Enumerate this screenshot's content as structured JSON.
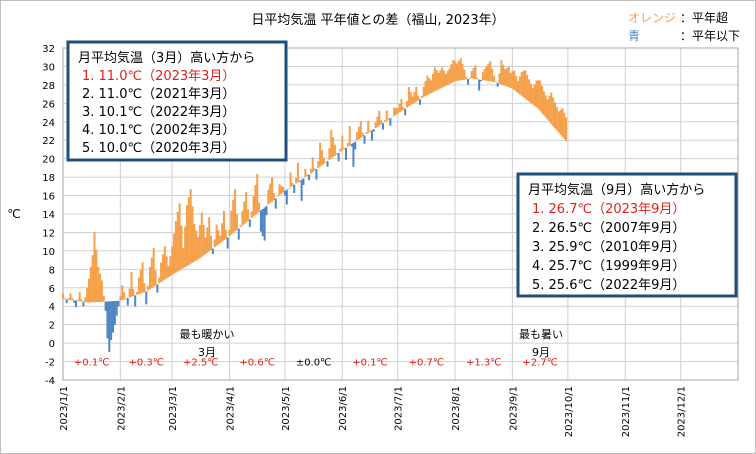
{
  "chart_data": {
    "type": "bar",
    "title": "日平均気温 平年値との差（福山, 2023年）",
    "ylabel": "℃",
    "ylim": [
      -4,
      32
    ],
    "y_ticks": [
      "-4",
      "-2",
      "0",
      "2",
      "4",
      "6",
      "8",
      "10",
      "12",
      "14",
      "16",
      "18",
      "20",
      "22",
      "24",
      "26",
      "28",
      "30",
      "32"
    ],
    "x_ticks": [
      "2023/1/1",
      "2023/2/1",
      "2023/3/1",
      "2023/4/1",
      "2023/5/1",
      "2023/6/1",
      "2023/7/1",
      "2023/8/1",
      "2023/9/1",
      "2023/10/1",
      "2023/11/1",
      "2023/12/1"
    ],
    "grid": true,
    "colors": {
      "above": "#f5a04a",
      "below": "#4f86c6",
      "warn": "#e0211b",
      "frame": "#1f4e79"
    },
    "legend": [
      {
        "label": "オレンジ",
        "text": "：平年超",
        "color": "#f5a04a"
      },
      {
        "label": "青",
        "text": "：平年以下",
        "color": "#4f86c6"
      }
    ],
    "normal_anchors": [
      [
        1,
        4.8
      ],
      [
        15,
        4.4
      ],
      [
        32,
        4.6
      ],
      [
        46,
        5.6
      ],
      [
        60,
        7.4
      ],
      [
        75,
        9.2
      ],
      [
        91,
        11.6
      ],
      [
        105,
        13.9
      ],
      [
        121,
        16.5
      ],
      [
        135,
        18.4
      ],
      [
        152,
        20.9
      ],
      [
        166,
        22.8
      ],
      [
        182,
        24.9
      ],
      [
        196,
        26.7
      ],
      [
        213,
        28.4
      ],
      [
        222,
        28.7
      ],
      [
        235,
        28.3
      ],
      [
        244,
        27.6
      ],
      [
        258,
        25.4
      ],
      [
        273,
        21.9
      ]
    ],
    "daily_anomaly": [
      [
        1,
        0.6
      ],
      [
        3,
        -0.4
      ],
      [
        5,
        0.7
      ],
      [
        8,
        -0.7
      ],
      [
        10,
        1.0
      ],
      [
        12,
        -0.5
      ],
      [
        15,
        2.6
      ],
      [
        17,
        5.1
      ],
      [
        18,
        7.6
      ],
      [
        20,
        3.8
      ],
      [
        22,
        2.3
      ],
      [
        24,
        -1.0
      ],
      [
        25,
        -4.0
      ],
      [
        26,
        -5.5
      ],
      [
        27,
        -4.2
      ],
      [
        29,
        -2.6
      ],
      [
        31,
        -0.6
      ],
      [
        33,
        1.6
      ],
      [
        36,
        -0.8
      ],
      [
        38,
        2.7
      ],
      [
        40,
        -1.2
      ],
      [
        42,
        1.8
      ],
      [
        44,
        3.3
      ],
      [
        46,
        -1.4
      ],
      [
        48,
        2.4
      ],
      [
        50,
        4.2
      ],
      [
        52,
        -0.9
      ],
      [
        54,
        2.1
      ],
      [
        56,
        3.6
      ],
      [
        58,
        1.2
      ],
      [
        60,
        3.1
      ],
      [
        62,
        5.6
      ],
      [
        64,
        7.3
      ],
      [
        66,
        2.2
      ],
      [
        68,
        6.6
      ],
      [
        70,
        8.1
      ],
      [
        72,
        4.1
      ],
      [
        74,
        2.4
      ],
      [
        76,
        4.8
      ],
      [
        78,
        1.8
      ],
      [
        80,
        3.7
      ],
      [
        82,
        -0.6
      ],
      [
        84,
        2.3
      ],
      [
        86,
        0.8
      ],
      [
        88,
        3.2
      ],
      [
        90,
        -1.2
      ],
      [
        92,
        2.6
      ],
      [
        94,
        4.6
      ],
      [
        96,
        -1.2
      ],
      [
        98,
        1.6
      ],
      [
        100,
        3.3
      ],
      [
        102,
        -0.8
      ],
      [
        104,
        2.2
      ],
      [
        106,
        4.3
      ],
      [
        108,
        -2.3
      ],
      [
        110,
        -3.6
      ],
      [
        112,
        1.6
      ],
      [
        114,
        2.6
      ],
      [
        116,
        -1.1
      ],
      [
        118,
        1.2
      ],
      [
        120,
        0.6
      ],
      [
        122,
        -1.6
      ],
      [
        124,
        1.6
      ],
      [
        126,
        -0.9
      ],
      [
        128,
        2.1
      ],
      [
        130,
        -2.3
      ],
      [
        132,
        0.9
      ],
      [
        134,
        -0.6
      ],
      [
        136,
        1.6
      ],
      [
        138,
        -1.1
      ],
      [
        140,
        2.6
      ],
      [
        142,
        0.7
      ],
      [
        144,
        -0.6
      ],
      [
        146,
        3.1
      ],
      [
        148,
        1.2
      ],
      [
        150,
        -0.9
      ],
      [
        152,
        1.6
      ],
      [
        154,
        -1.3
      ],
      [
        156,
        2.1
      ],
      [
        158,
        -2.6
      ],
      [
        160,
        0.9
      ],
      [
        162,
        1.8
      ],
      [
        164,
        -0.9
      ],
      [
        166,
        1.3
      ],
      [
        168,
        -1.1
      ],
      [
        170,
        0.6
      ],
      [
        172,
        1.6
      ],
      [
        174,
        -0.7
      ],
      [
        176,
        1.1
      ],
      [
        178,
        -0.8
      ],
      [
        180,
        0.9
      ],
      [
        182,
        0.6
      ],
      [
        184,
        1.3
      ],
      [
        186,
        -0.7
      ],
      [
        188,
        2.1
      ],
      [
        190,
        0.8
      ],
      [
        192,
        1.6
      ],
      [
        194,
        -0.6
      ],
      [
        196,
        1.1
      ],
      [
        198,
        2.1
      ],
      [
        200,
        1.4
      ],
      [
        202,
        2.6
      ],
      [
        204,
        1.8
      ],
      [
        206,
        2.2
      ],
      [
        208,
        1.3
      ],
      [
        210,
        1.7
      ],
      [
        212,
        2.4
      ],
      [
        214,
        1.9
      ],
      [
        216,
        2.4
      ],
      [
        218,
        1.1
      ],
      [
        220,
        -0.6
      ],
      [
        222,
        0.8
      ],
      [
        224,
        1.5
      ],
      [
        226,
        -1.2
      ],
      [
        228,
        0.9
      ],
      [
        230,
        1.6
      ],
      [
        232,
        2.2
      ],
      [
        234,
        0.6
      ],
      [
        236,
        -0.4
      ],
      [
        238,
        2.6
      ],
      [
        240,
        1.8
      ],
      [
        242,
        2.2
      ],
      [
        243,
        1.6
      ],
      [
        245,
        2.1
      ],
      [
        247,
        1.3
      ],
      [
        249,
        2.6
      ],
      [
        251,
        3.1
      ],
      [
        253,
        2.4
      ],
      [
        255,
        1.8
      ],
      [
        257,
        2.9
      ],
      [
        259,
        3.3
      ],
      [
        261,
        2.6
      ],
      [
        263,
        2.2
      ],
      [
        265,
        3.4
      ],
      [
        267,
        2.8
      ],
      [
        269,
        2.3
      ],
      [
        271,
        3.1
      ],
      [
        273,
        2.6
      ]
    ],
    "annotations": {
      "warmest_march_top": "最も暖かい",
      "warmest_march_bottom": "3月",
      "hottest_sept_top": "最も暑い",
      "hottest_sept_bottom": "9月"
    },
    "monthly_anomalies": [
      {
        "month": 1,
        "label": "+0.1℃",
        "color": "#e0211b"
      },
      {
        "month": 2,
        "label": "+0.3℃",
        "color": "#e0211b"
      },
      {
        "month": 3,
        "label": "+2.5℃",
        "color": "#e0211b"
      },
      {
        "month": 4,
        "label": "+0.6℃",
        "color": "#e0211b"
      },
      {
        "month": 5,
        "label": "±0.0℃",
        "color": "#000000"
      },
      {
        "month": 6,
        "label": "+0.1℃",
        "color": "#e0211b"
      },
      {
        "month": 7,
        "label": "+0.7℃",
        "color": "#e0211b"
      },
      {
        "month": 8,
        "label": "+1.3℃",
        "color": "#e0211b"
      },
      {
        "month": 9,
        "label": "+2.7℃",
        "color": "#e0211b"
      }
    ]
  },
  "ranking_march": {
    "title": "月平均気温（3月）高い方から",
    "items": [
      {
        "text": "1. 11.0℃（2023年3月）",
        "highlight": true
      },
      {
        "text": "2. 11.0℃（2021年3月）",
        "highlight": false
      },
      {
        "text": "3. 10.1℃（2022年3月）",
        "highlight": false
      },
      {
        "text": "4. 10.1℃（2002年3月）",
        "highlight": false
      },
      {
        "text": "5. 10.0℃（2020年3月）",
        "highlight": false
      }
    ]
  },
  "ranking_september": {
    "title": "月平均気温（9月）高い方から",
    "items": [
      {
        "text": "1. 26.7℃（2023年9月）",
        "highlight": true
      },
      {
        "text": "2. 26.5℃（2007年9月）",
        "highlight": false
      },
      {
        "text": "3. 25.9℃（2010年9月）",
        "highlight": false
      },
      {
        "text": "4. 25.7℃（1999年9月）",
        "highlight": false
      },
      {
        "text": "5. 25.6℃（2022年9月）",
        "highlight": false
      }
    ]
  }
}
